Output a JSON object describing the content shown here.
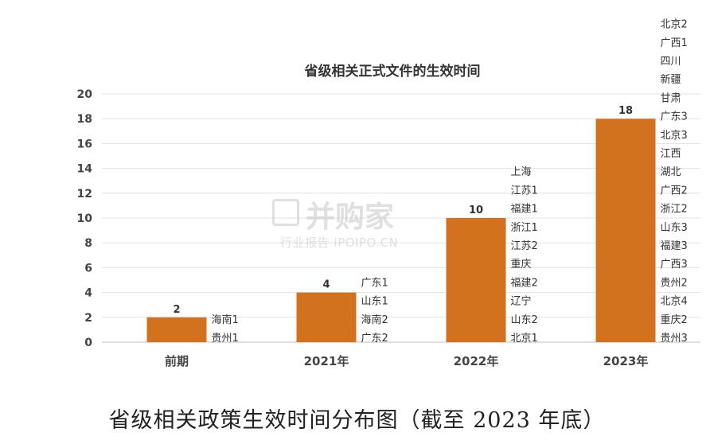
{
  "chart_data": {
    "type": "bar",
    "title": "省级相关正式文件的生效时间",
    "categories": [
      "前期",
      "2021年",
      "2022年",
      "2023年"
    ],
    "values": [
      2,
      4,
      10,
      18
    ],
    "ylim": [
      0,
      20
    ],
    "yticks": [
      0,
      2,
      4,
      6,
      8,
      10,
      12,
      14,
      16,
      18,
      20
    ],
    "grid": true,
    "bar_color": "#D2721E",
    "annotations": [
      [
        "海南1",
        "贵州1"
      ],
      [
        "广东1",
        "山东1",
        "海南2",
        "广东2"
      ],
      [
        "上海",
        "江苏1",
        "福建1",
        "浙江1",
        "江苏2",
        "重庆",
        "福建2",
        "辽宁",
        "山东2",
        "北京1"
      ],
      [
        "北京2",
        "广西1",
        "四川",
        "新疆",
        "甘肃",
        "广东3",
        "北京3",
        "江西",
        "湖北",
        "广西2",
        "浙江2",
        "山东3",
        "福建3",
        "广西3",
        "贵州2",
        "北京4",
        "重庆2",
        "贵州3"
      ]
    ]
  },
  "caption": "省级相关政策生效时间分布图（截至 2023 年底）",
  "watermark": {
    "brand": "并购家",
    "sub": "行业报告 IPOIPO.CN"
  }
}
